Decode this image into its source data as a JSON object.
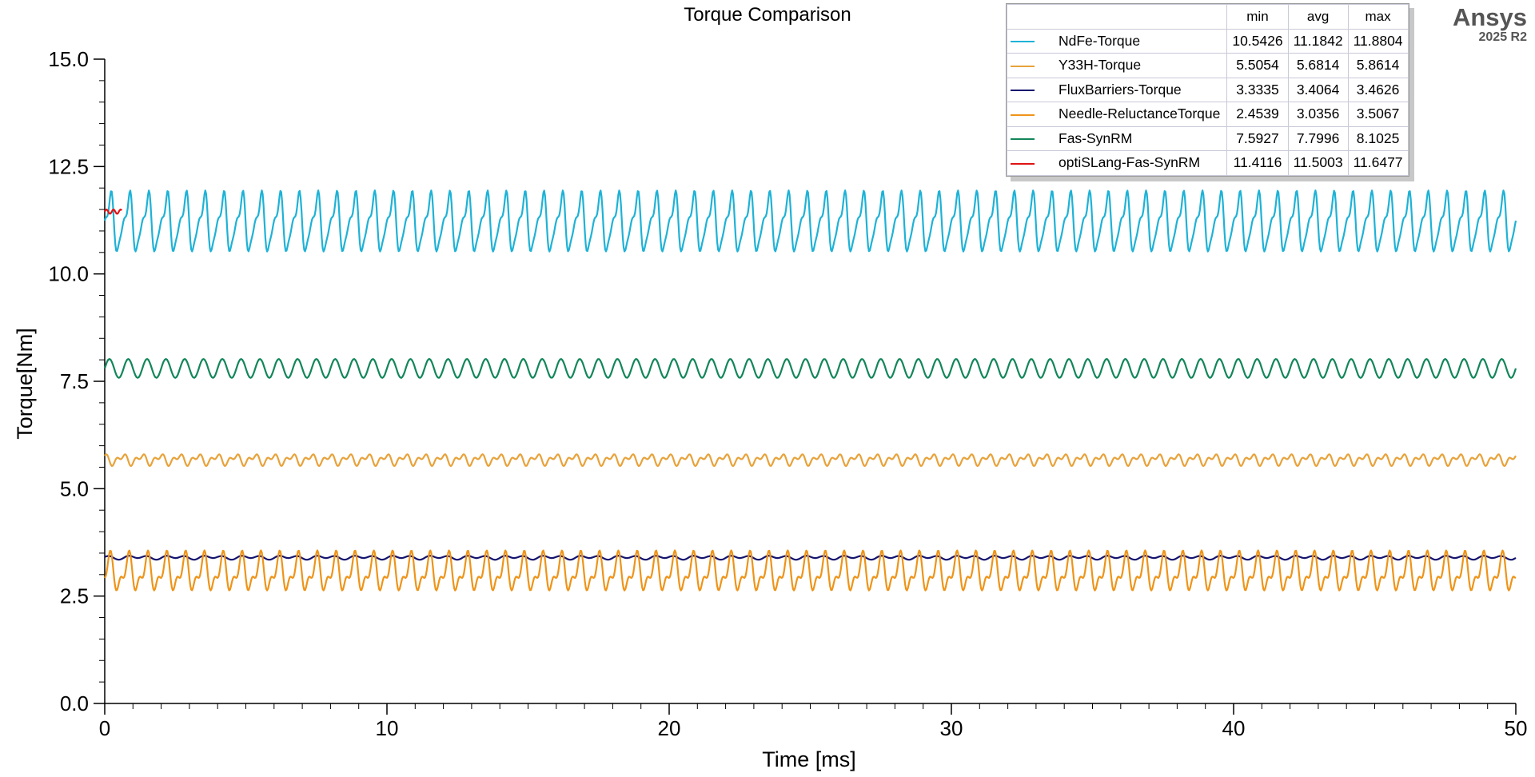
{
  "brand": {
    "name": "Ansys",
    "version": "2025 R2"
  },
  "legend": {
    "headers": [
      "min",
      "avg",
      "max"
    ],
    "rows": [
      {
        "name": "NdFe-Torque",
        "color": "#1eb2d6",
        "min": "10.5426",
        "avg": "11.1842",
        "max": "11.8804"
      },
      {
        "name": "Y33H-Torque",
        "color": "#e8a23a",
        "min": "5.5054",
        "avg": "5.6814",
        "max": "5.8614"
      },
      {
        "name": "FluxBarriers-Torque",
        "color": "#14146e",
        "min": "3.3335",
        "avg": "3.4064",
        "max": "3.4626"
      },
      {
        "name": "Needle-ReluctanceTorque",
        "color": "#ee9418",
        "min": "2.4539",
        "avg": "3.0356",
        "max": "3.5067"
      },
      {
        "name": "Fas-SynRM",
        "color": "#12865a",
        "min": "7.5927",
        "avg": "7.7996",
        "max": "8.1025"
      },
      {
        "name": "optiSLang-Fas-SynRM",
        "color": "#e01414",
        "min": "11.4116",
        "avg": "11.5003",
        "max": "11.6477"
      }
    ]
  },
  "chart_data": {
    "type": "line",
    "title": "Torque Comparison",
    "xlabel": "Time [ms]",
    "ylabel": "Torque[Nm]",
    "xlim": [
      0,
      50
    ],
    "ylim": [
      0,
      15
    ],
    "xticks": [
      "0",
      "10",
      "20",
      "30",
      "40",
      "50"
    ],
    "yticks": [
      "0.0",
      "2.5",
      "5.0",
      "7.5",
      "10.0",
      "12.5",
      "15.0"
    ],
    "grid": false,
    "legend_position": "top-right",
    "series": [
      {
        "name": "NdFe-Torque",
        "color": "#1eb2d6",
        "x_range": [
          0,
          50
        ],
        "points": 1600,
        "wave": {
          "base": 11.18,
          "components": [
            [
              0.55,
              1.5,
              0.0
            ],
            [
              0.25,
              3.0,
              0.5
            ],
            [
              0.1,
              4.5,
              1.1
            ]
          ]
        }
      },
      {
        "name": "Y33H-Torque",
        "color": "#e8a23a",
        "x_range": [
          0,
          50
        ],
        "points": 1600,
        "wave": {
          "base": 5.68,
          "components": [
            [
              0.09,
              1.5,
              0.3
            ],
            [
              0.07,
              3.0,
              0.0
            ]
          ]
        }
      },
      {
        "name": "FluxBarriers-Torque",
        "color": "#14146e",
        "x_range": [
          0,
          50
        ],
        "points": 800,
        "wave": {
          "base": 3.4,
          "components": [
            [
              0.035,
              1.5,
              0.0
            ],
            [
              0.02,
              0.75,
              0.4
            ]
          ]
        }
      },
      {
        "name": "Needle-ReluctanceTorque",
        "color": "#ee9418",
        "x_range": [
          0,
          50
        ],
        "points": 1600,
        "wave": {
          "base": 3.04,
          "components": [
            [
              0.35,
              1.5,
              0.0
            ],
            [
              0.2,
              3.0,
              0.6
            ]
          ]
        }
      },
      {
        "name": "Fas-SynRM",
        "color": "#12865a",
        "x_range": [
          0,
          50
        ],
        "points": 1200,
        "wave": {
          "base": 7.8,
          "components": [
            [
              0.22,
              1.5,
              0.0
            ]
          ]
        }
      },
      {
        "name": "optiSLang-Fas-SynRM",
        "color": "#e01414",
        "x_range": [
          0,
          0.6
        ],
        "points": 30,
        "wave": {
          "base": 11.45,
          "components": [
            [
              0.05,
              4.0,
              0.0
            ]
          ]
        }
      }
    ]
  }
}
